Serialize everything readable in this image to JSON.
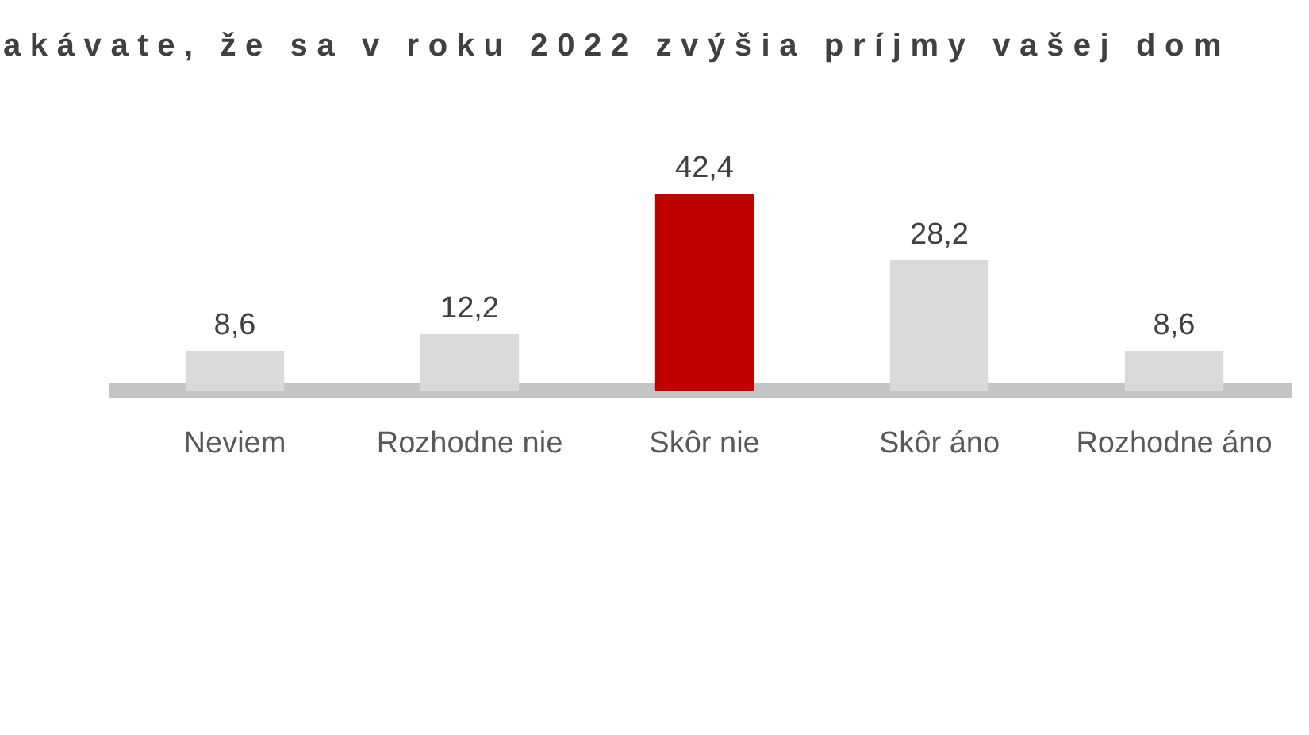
{
  "chart_data": {
    "type": "bar",
    "title": "akávate, že sa v roku 2022 zvýšia príjmy vašej dom",
    "categories": [
      "Neviem",
      "Rozhodne nie",
      "Skôr nie",
      "Skôr áno",
      "Rozhodne áno"
    ],
    "values": [
      8.6,
      12.2,
      42.4,
      28.2,
      8.6
    ],
    "value_labels": [
      "8,6",
      "12,2",
      "42,4",
      "28,2",
      "8,6"
    ],
    "colors": [
      "#d9d9d9",
      "#d9d9d9",
      "#c00000",
      "#d9d9d9",
      "#d9d9d9"
    ],
    "grid": false,
    "legend": false
  }
}
